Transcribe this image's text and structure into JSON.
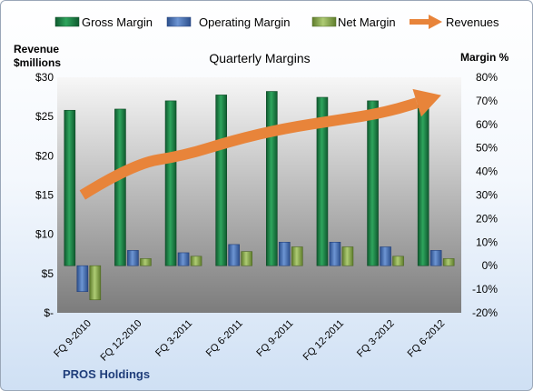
{
  "chart_data": {
    "type": "bar",
    "title": "Quarterly Margins",
    "footer": "PROS Holdings",
    "ylabel_left_line1": "Revenue",
    "ylabel_left_line2": "$millions",
    "ylabel_right": "Margin %",
    "categories": [
      "FQ 9-2010",
      "FQ 12-2010",
      "FQ 3-2011",
      "FQ 6-2011",
      "FQ 9-2011",
      "FQ 12-2011",
      "FQ 3-2012",
      "FQ 6-2012"
    ],
    "left_axis": {
      "min": 0,
      "max": 30,
      "step": 5,
      "tick_labels": [
        "$-",
        "$5",
        "$10",
        "$15",
        "$20",
        "$25",
        "$30"
      ]
    },
    "right_axis": {
      "min": -20,
      "max": 80,
      "step": 10,
      "tick_labels": [
        "-20%",
        "-10%",
        "0%",
        "10%",
        "20%",
        "30%",
        "40%",
        "50%",
        "60%",
        "70%",
        "80%"
      ]
    },
    "series": [
      {
        "name": "Gross Margin",
        "axis": "right",
        "kind": "bar",
        "color": "#1e8a4c",
        "values": [
          66,
          66.5,
          70,
          72.5,
          74,
          71.5,
          70,
          72.5
        ]
      },
      {
        "name": "Operating Margin",
        "axis": "right",
        "kind": "bar",
        "color": "#4670b5",
        "values": [
          -11,
          6.5,
          5.5,
          9,
          10,
          10,
          8,
          6.5
        ]
      },
      {
        "name": "Net Margin",
        "axis": "right",
        "kind": "bar",
        "color": "#8fb055",
        "values": [
          -14.5,
          3,
          4,
          6,
          8,
          8,
          4,
          3
        ]
      },
      {
        "name": "Revenues",
        "axis": "left",
        "kind": "arrow",
        "color": "#e8843a",
        "values": [
          15,
          19,
          20,
          22,
          23.5,
          24.5,
          25.5,
          27.5
        ]
      }
    ],
    "grid": false,
    "legend_position": "top"
  }
}
